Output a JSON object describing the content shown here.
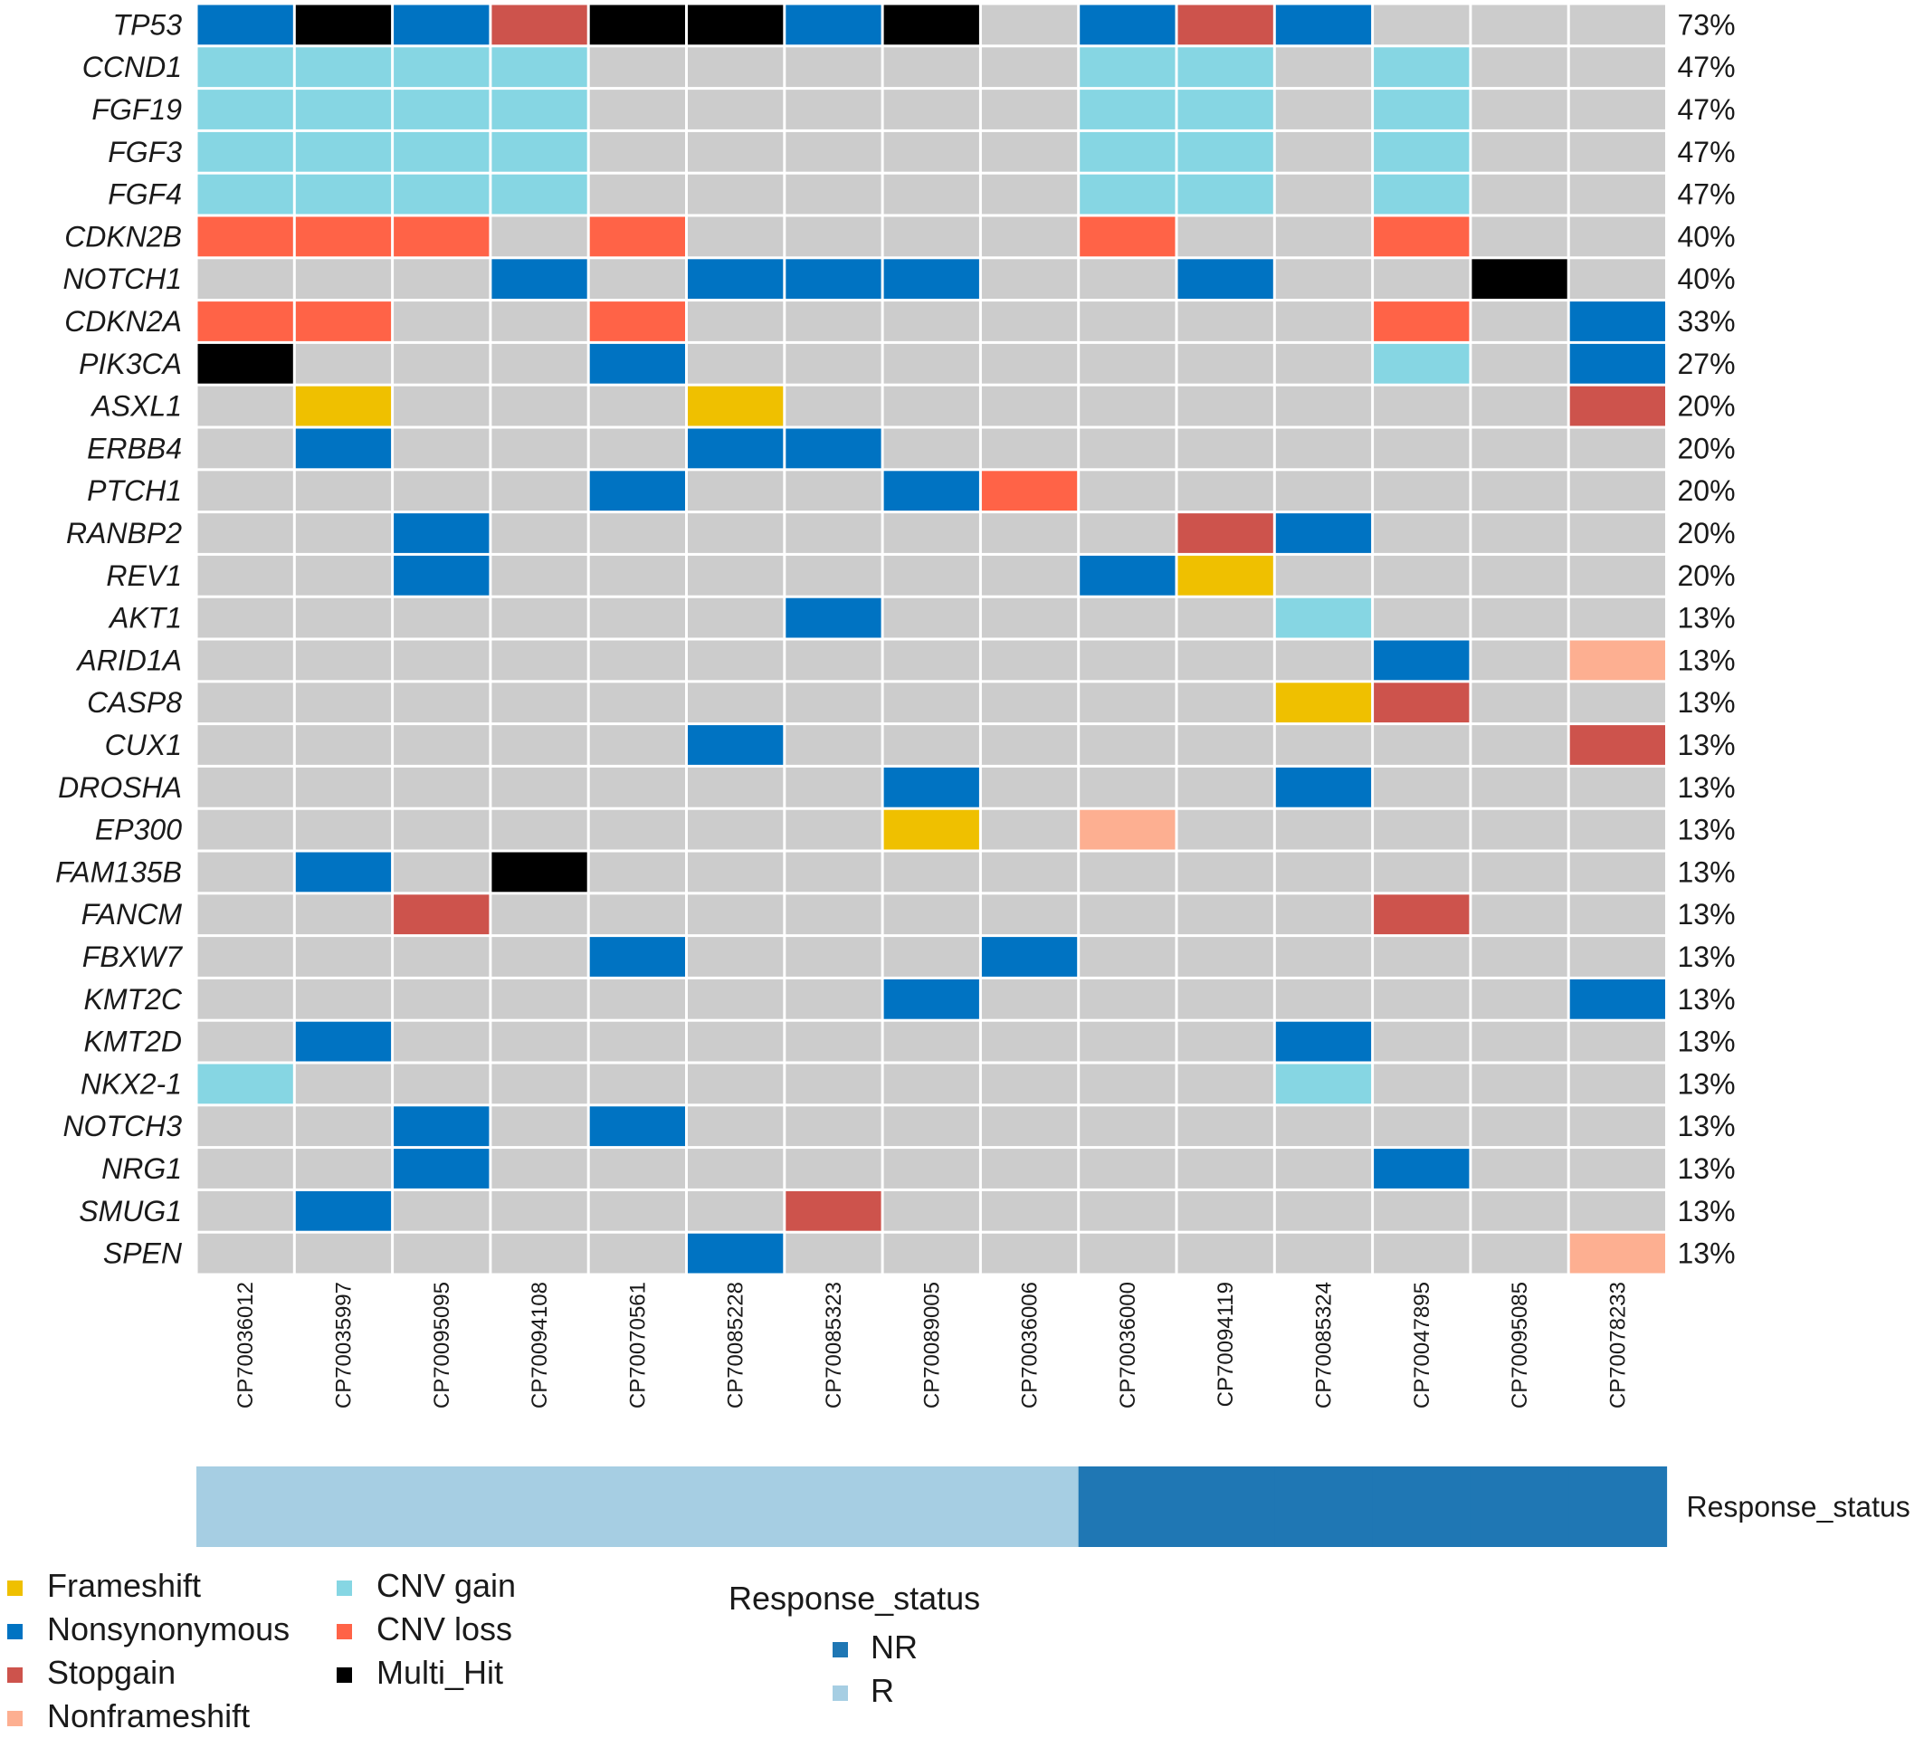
{
  "chart_data": {
    "type": "heatmap",
    "subtype": "oncoprint",
    "genes": [
      "TP53",
      "CCND1",
      "FGF19",
      "FGF3",
      "FGF4",
      "CDKN2B",
      "NOTCH1",
      "CDKN2A",
      "PIK3CA",
      "ASXL1",
      "ERBB4",
      "PTCH1",
      "RANBP2",
      "REV1",
      "AKT1",
      "ARID1A",
      "CASP8",
      "CUX1",
      "DROSHA",
      "EP300",
      "FAM135B",
      "FANCM",
      "FBXW7",
      "KMT2C",
      "KMT2D",
      "NKX2-1",
      "NOTCH3",
      "NRG1",
      "SMUG1",
      "SPEN"
    ],
    "percentages": [
      "73%",
      "47%",
      "47%",
      "47%",
      "47%",
      "40%",
      "40%",
      "33%",
      "27%",
      "20%",
      "20%",
      "20%",
      "20%",
      "20%",
      "13%",
      "13%",
      "13%",
      "13%",
      "13%",
      "13%",
      "13%",
      "13%",
      "13%",
      "13%",
      "13%",
      "13%",
      "13%",
      "13%",
      "13%",
      "13%"
    ],
    "samples": [
      "CP70036012",
      "CP70035997",
      "CP70095095",
      "CP70094108",
      "CP70070561",
      "CP70085228",
      "CP70085323",
      "CP70089005",
      "CP70036006",
      "CP70036000",
      "CP70094119",
      "CP70085324",
      "CP70047895",
      "CP70095085",
      "CP70078233"
    ],
    "matrix": [
      [
        "NS",
        "MH",
        "NS",
        "SG",
        "MH",
        "MH",
        "NS",
        "MH",
        "",
        "NS",
        "SG",
        "NS",
        "",
        "",
        ""
      ],
      [
        "CG",
        "CG",
        "CG",
        "CG",
        "",
        "",
        "",
        "",
        "",
        "CG",
        "CG",
        "",
        "CG",
        "",
        ""
      ],
      [
        "CG",
        "CG",
        "CG",
        "CG",
        "",
        "",
        "",
        "",
        "",
        "CG",
        "CG",
        "",
        "CG",
        "",
        ""
      ],
      [
        "CG",
        "CG",
        "CG",
        "CG",
        "",
        "",
        "",
        "",
        "",
        "CG",
        "CG",
        "",
        "CG",
        "",
        ""
      ],
      [
        "CG",
        "CG",
        "CG",
        "CG",
        "",
        "",
        "",
        "",
        "",
        "CG",
        "CG",
        "",
        "CG",
        "",
        ""
      ],
      [
        "CL",
        "CL",
        "CL",
        "",
        "CL",
        "",
        "",
        "",
        "",
        "CL",
        "",
        "",
        "CL",
        "",
        ""
      ],
      [
        "",
        "",
        "",
        "NS",
        "",
        "NS",
        "NS",
        "NS",
        "",
        "",
        "NS",
        "",
        "",
        "MH",
        ""
      ],
      [
        "CL",
        "CL",
        "",
        "",
        "CL",
        "",
        "",
        "",
        "",
        "",
        "",
        "",
        "CL",
        "",
        "NS"
      ],
      [
        "MH",
        "",
        "",
        "",
        "NS",
        "",
        "",
        "",
        "",
        "",
        "",
        "",
        "CG",
        "",
        "NS"
      ],
      [
        "",
        "FS",
        "",
        "",
        "",
        "FS",
        "",
        "",
        "",
        "",
        "",
        "",
        "",
        "",
        "SG"
      ],
      [
        "",
        "NS",
        "",
        "",
        "",
        "NS",
        "NS",
        "",
        "",
        "",
        "",
        "",
        "",
        "",
        ""
      ],
      [
        "",
        "",
        "",
        "",
        "NS",
        "",
        "",
        "NS",
        "CL",
        "",
        "",
        "",
        "",
        "",
        ""
      ],
      [
        "",
        "",
        "NS",
        "",
        "",
        "",
        "",
        "",
        "",
        "",
        "SG",
        "NS",
        "",
        "",
        ""
      ],
      [
        "",
        "",
        "NS",
        "",
        "",
        "",
        "",
        "",
        "",
        "NS",
        "FS",
        "",
        "",
        "",
        ""
      ],
      [
        "",
        "",
        "",
        "",
        "",
        "",
        "NS",
        "",
        "",
        "",
        "",
        "CG",
        "",
        "",
        ""
      ],
      [
        "",
        "",
        "",
        "",
        "",
        "",
        "",
        "",
        "",
        "",
        "",
        "",
        "NS",
        "",
        "NF"
      ],
      [
        "",
        "",
        "",
        "",
        "",
        "",
        "",
        "",
        "",
        "",
        "",
        "FS",
        "SG",
        "",
        ""
      ],
      [
        "",
        "",
        "",
        "",
        "",
        "NS",
        "",
        "",
        "",
        "",
        "",
        "",
        "",
        "",
        "SG"
      ],
      [
        "",
        "",
        "",
        "",
        "",
        "",
        "",
        "NS",
        "",
        "",
        "",
        "NS",
        "",
        "",
        ""
      ],
      [
        "",
        "",
        "",
        "",
        "",
        "",
        "",
        "FS",
        "",
        "NF",
        "",
        "",
        "",
        "",
        ""
      ],
      [
        "",
        "NS",
        "",
        "MH",
        "",
        "",
        "",
        "",
        "",
        "",
        "",
        "",
        "",
        "",
        ""
      ],
      [
        "",
        "",
        "SG",
        "",
        "",
        "",
        "",
        "",
        "",
        "",
        "",
        "",
        "SG",
        "",
        ""
      ],
      [
        "",
        "",
        "",
        "",
        "NS",
        "",
        "",
        "",
        "NS",
        "",
        "",
        "",
        "",
        "",
        ""
      ],
      [
        "",
        "",
        "",
        "",
        "",
        "",
        "",
        "NS",
        "",
        "",
        "",
        "",
        "",
        "",
        "NS"
      ],
      [
        "",
        "NS",
        "",
        "",
        "",
        "",
        "",
        "",
        "",
        "",
        "",
        "NS",
        "",
        "",
        ""
      ],
      [
        "CG",
        "",
        "",
        "",
        "",
        "",
        "",
        "",
        "",
        "",
        "",
        "CG",
        "",
        "",
        ""
      ],
      [
        "",
        "",
        "NS",
        "",
        "NS",
        "",
        "",
        "",
        "",
        "",
        "",
        "",
        "",
        "",
        ""
      ],
      [
        "",
        "",
        "NS",
        "",
        "",
        "",
        "",
        "",
        "",
        "",
        "",
        "",
        "NS",
        "",
        ""
      ],
      [
        "",
        "NS",
        "",
        "",
        "",
        "",
        "SG",
        "",
        "",
        "",
        "",
        "",
        "",
        "",
        ""
      ],
      [
        "",
        "",
        "",
        "",
        "",
        "NS",
        "",
        "",
        "",
        "",
        "",
        "",
        "",
        "",
        "NF"
      ]
    ],
    "mutation_types": {
      "FS": {
        "name": "Frameshift",
        "color": "#EFC000"
      },
      "NS": {
        "name": "Nonsynonymous",
        "color": "#0073C2"
      },
      "SG": {
        "name": "Stopgain",
        "color": "#CD534C"
      },
      "NF": {
        "name": "Nonframeshift",
        "color": "#FDAF91"
      },
      "CG": {
        "name": "CNV gain",
        "color": "#86D6E3"
      },
      "CL": {
        "name": "CNV loss",
        "color": "#FF6347"
      },
      "MH": {
        "name": "Multi_Hit",
        "color": "#000000"
      }
    },
    "background_color": "#CCCCCC",
    "legend_order": [
      "FS",
      "NS",
      "SG",
      "NF",
      "CG",
      "CL",
      "MH"
    ],
    "annotation": {
      "title": "Response_status",
      "values": [
        "R",
        "R",
        "R",
        "R",
        "R",
        "R",
        "R",
        "R",
        "R",
        "NR",
        "NR",
        "NR",
        "NR",
        "NR",
        "NR"
      ],
      "levels": [
        {
          "label": "NR",
          "color": "#1F77B4"
        },
        {
          "label": "R",
          "color": "#A6CEE3"
        }
      ]
    }
  }
}
